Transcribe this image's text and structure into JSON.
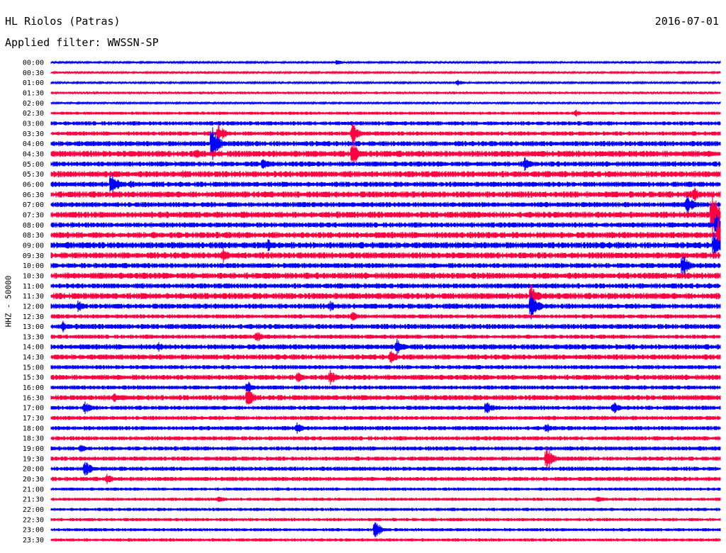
{
  "header": {
    "station": "HL Riolos (Patras)",
    "date": "2016-07-01",
    "filter": "Applied filter: WWSSN-SP",
    "channel": "HHZ - 50000"
  },
  "colors": {
    "even_hour": "#0000ff",
    "half_hour": "#ff0040"
  },
  "chart_data": {
    "type": "line",
    "title": "HL Riolos (Patras)",
    "subtitle": "Applied filter: WWSSN-SP",
    "ylabel": "HHZ - 50000",
    "date": "2016-07-01",
    "y_tick_labels": [
      "00:00",
      "00:30",
      "01:00",
      "01:30",
      "02:00",
      "02:30",
      "03:00",
      "03:30",
      "04:00",
      "04:30",
      "05:00",
      "05:30",
      "06:00",
      "06:30",
      "07:00",
      "07:30",
      "08:00",
      "08:30",
      "09:00",
      "09:30",
      "10:00",
      "10:30",
      "11:00",
      "11:30",
      "12:00",
      "12:30",
      "13:00",
      "13:30",
      "14:00",
      "14:30",
      "15:00",
      "15:30",
      "16:00",
      "16:30",
      "17:00",
      "17:30",
      "18:00",
      "18:30",
      "19:00",
      "19:30",
      "20:00",
      "20:30",
      "21:00",
      "21:30",
      "22:00",
      "22:30",
      "23:00",
      "23:30"
    ],
    "x_range_minutes": [
      0,
      30
    ],
    "noise": [
      0.8,
      0.8,
      0.8,
      1.2,
      0.8,
      1.5,
      2,
      2,
      2.5,
      3,
      2.5,
      3,
      2.5,
      3,
      2.5,
      3,
      2.5,
      3,
      3,
      3,
      2.5,
      3,
      2.5,
      3,
      2.5,
      2,
      2.5,
      2,
      2.5,
      2.5,
      2,
      2.5,
      2,
      2.5,
      2,
      2,
      2,
      2,
      2,
      2,
      2,
      2,
      1.5,
      1.5,
      1.5,
      1.5,
      1.5,
      1.5
    ],
    "events": [
      {
        "row": 0,
        "minute": 12.8,
        "amplitude": 5
      },
      {
        "row": 0,
        "minute": 25.8,
        "amplitude": 3
      },
      {
        "row": 1,
        "minute": 6.8,
        "amplitude": 3
      },
      {
        "row": 2,
        "minute": 18.2,
        "amplitude": 5
      },
      {
        "row": 5,
        "minute": 23.5,
        "amplitude": 6
      },
      {
        "row": 6,
        "minute": 20.5,
        "amplitude": 5
      },
      {
        "row": 7,
        "minute": 7.5,
        "amplitude": 15
      },
      {
        "row": 7,
        "minute": 13.5,
        "amplitude": 18
      },
      {
        "row": 8,
        "minute": 7.2,
        "amplitude": 30
      },
      {
        "row": 9,
        "minute": 6.5,
        "amplitude": 10
      },
      {
        "row": 9,
        "minute": 13.5,
        "amplitude": 20
      },
      {
        "row": 10,
        "minute": 9.5,
        "amplitude": 10
      },
      {
        "row": 10,
        "minute": 21.2,
        "amplitude": 12
      },
      {
        "row": 11,
        "minute": 5.9,
        "amplitude": 8
      },
      {
        "row": 12,
        "minute": 2.7,
        "amplitude": 20
      },
      {
        "row": 12,
        "minute": 3.5,
        "amplitude": 8
      },
      {
        "row": 13,
        "minute": 28.8,
        "amplitude": 12
      },
      {
        "row": 14,
        "minute": 28.5,
        "amplitude": 16
      },
      {
        "row": 15,
        "minute": 29.6,
        "amplitude": 45
      },
      {
        "row": 16,
        "minute": 29.8,
        "amplitude": 20
      },
      {
        "row": 17,
        "minute": 29.9,
        "amplitude": 25
      },
      {
        "row": 18,
        "minute": 29.7,
        "amplitude": 20
      },
      {
        "row": 18,
        "minute": 9.7,
        "amplitude": 10
      },
      {
        "row": 19,
        "minute": 7.7,
        "amplitude": 12
      },
      {
        "row": 20,
        "minute": 28.3,
        "amplitude": 18
      },
      {
        "row": 23,
        "minute": 21.5,
        "amplitude": 20
      },
      {
        "row": 24,
        "minute": 21.5,
        "amplitude": 25
      },
      {
        "row": 24,
        "minute": 1.2,
        "amplitude": 10
      },
      {
        "row": 24,
        "minute": 12.5,
        "amplitude": 10
      },
      {
        "row": 25,
        "minute": 13.5,
        "amplitude": 8
      },
      {
        "row": 26,
        "minute": 0.5,
        "amplitude": 10
      },
      {
        "row": 27,
        "minute": 9.2,
        "amplitude": 10
      },
      {
        "row": 28,
        "minute": 4.8,
        "amplitude": 8
      },
      {
        "row": 28,
        "minute": 15.5,
        "amplitude": 12
      },
      {
        "row": 29,
        "minute": 15.2,
        "amplitude": 12
      },
      {
        "row": 31,
        "minute": 11,
        "amplitude": 10
      },
      {
        "row": 31,
        "minute": 12.5,
        "amplitude": 12
      },
      {
        "row": 32,
        "minute": 8.8,
        "amplitude": 12
      },
      {
        "row": 33,
        "minute": 2.8,
        "amplitude": 8
      },
      {
        "row": 33,
        "minute": 8.8,
        "amplitude": 16
      },
      {
        "row": 34,
        "minute": 1.5,
        "amplitude": 10
      },
      {
        "row": 34,
        "minute": 19.5,
        "amplitude": 12
      },
      {
        "row": 34,
        "minute": 25.2,
        "amplitude": 10
      },
      {
        "row": 36,
        "minute": 11,
        "amplitude": 10
      },
      {
        "row": 36,
        "minute": 22.2,
        "amplitude": 8
      },
      {
        "row": 38,
        "minute": 1.3,
        "amplitude": 8
      },
      {
        "row": 39,
        "minute": 22.2,
        "amplitude": 20
      },
      {
        "row": 40,
        "minute": 1.5,
        "amplitude": 15
      },
      {
        "row": 41,
        "minute": 2.5,
        "amplitude": 8
      },
      {
        "row": 43,
        "minute": 7.5,
        "amplitude": 6
      },
      {
        "row": 43,
        "minute": 24.5,
        "amplitude": 6
      },
      {
        "row": 46,
        "minute": 14.5,
        "amplitude": 15
      }
    ]
  }
}
